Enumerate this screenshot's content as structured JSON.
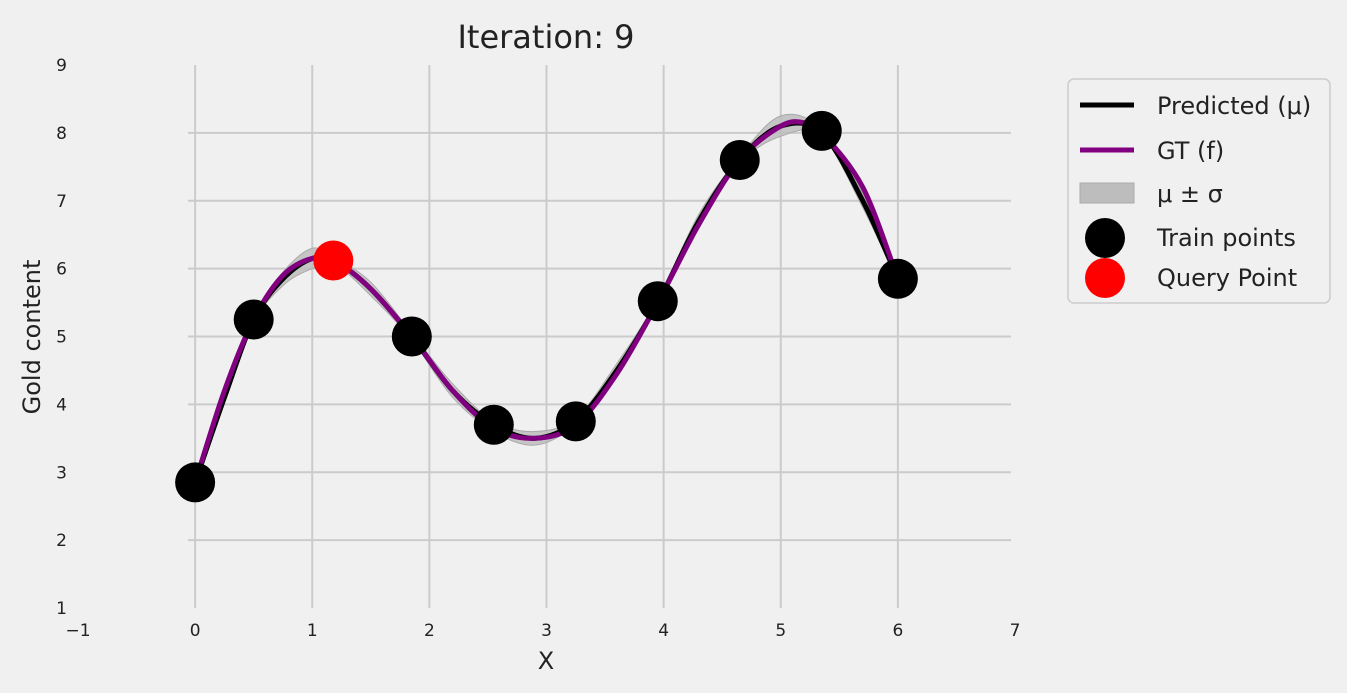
{
  "chart_data": {
    "type": "line",
    "title": "Iteration: 9",
    "xlabel": "X",
    "ylabel": "Gold content",
    "xlim": [
      -1,
      7
    ],
    "ylim": [
      1,
      9
    ],
    "x_ticks": [
      "−1",
      "0",
      "1",
      "2",
      "3",
      "4",
      "5",
      "6",
      "7"
    ],
    "y_ticks": [
      "1",
      "2",
      "3",
      "4",
      "5",
      "6",
      "7",
      "8",
      "9"
    ],
    "grid": true,
    "legend_position": "outside top-right",
    "legend": {
      "predicted": "Predicted (μ)",
      "gt": "GT (f)",
      "band": "μ ± σ",
      "train": "Train points",
      "query": "Query Point"
    },
    "colors": {
      "predicted": "#000000",
      "gt": "#800080",
      "band": "#bdbdbd",
      "train": "#000000",
      "query": "#ff0000"
    },
    "series": [
      {
        "name": "Predicted (μ)",
        "x": [
          0.0,
          0.25,
          0.5,
          0.75,
          1.0,
          1.2,
          1.5,
          1.85,
          2.2,
          2.55,
          2.9,
          3.25,
          3.6,
          3.95,
          4.3,
          4.65,
          5.0,
          5.35,
          5.7,
          6.0
        ],
        "y": [
          2.85,
          4.1,
          5.25,
          5.85,
          6.15,
          6.1,
          5.7,
          5.0,
          4.2,
          3.7,
          3.5,
          3.75,
          4.5,
          5.5,
          6.7,
          7.6,
          8.1,
          8.0,
          7.0,
          5.85
        ]
      },
      {
        "name": "GT (f)",
        "x": [
          0.0,
          0.25,
          0.5,
          0.75,
          1.0,
          1.2,
          1.5,
          1.85,
          2.2,
          2.55,
          2.9,
          3.25,
          3.6,
          3.95,
          4.3,
          4.65,
          5.0,
          5.2,
          5.35,
          5.7,
          6.0
        ],
        "y": [
          2.85,
          4.2,
          5.25,
          5.9,
          6.15,
          6.1,
          5.7,
          5.0,
          4.2,
          3.65,
          3.5,
          3.7,
          4.45,
          5.5,
          6.65,
          7.6,
          8.1,
          8.15,
          8.0,
          7.2,
          5.85
        ]
      }
    ],
    "band": {
      "x": [
        0.0,
        0.25,
        0.5,
        0.75,
        1.0,
        1.2,
        1.5,
        1.85,
        2.2,
        2.55,
        2.9,
        3.25,
        3.6,
        3.95,
        4.3,
        4.65,
        5.0,
        5.35,
        5.7,
        6.0
      ],
      "upper": [
        2.9,
        4.15,
        5.3,
        5.95,
        6.3,
        6.15,
        5.8,
        5.05,
        4.3,
        3.75,
        3.6,
        3.8,
        4.6,
        5.55,
        6.8,
        7.65,
        8.25,
        8.05,
        7.1,
        5.9
      ],
      "lower": [
        2.8,
        4.05,
        5.2,
        5.75,
        6.0,
        6.05,
        5.6,
        4.95,
        4.1,
        3.6,
        3.4,
        3.7,
        4.4,
        5.45,
        6.6,
        7.55,
        7.95,
        7.95,
        6.9,
        5.8
      ]
    },
    "train_points": {
      "name": "Train points",
      "x": [
        0.0,
        0.5,
        1.85,
        2.55,
        3.25,
        3.95,
        4.65,
        5.35,
        6.0
      ],
      "y": [
        2.85,
        5.25,
        5.0,
        3.7,
        3.75,
        5.52,
        7.6,
        8.03,
        5.85
      ]
    },
    "query_point": {
      "name": "Query Point",
      "x": 1.18,
      "y": 6.12
    }
  }
}
